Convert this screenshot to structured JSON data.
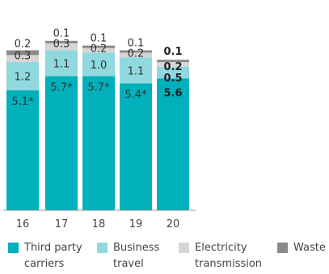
{
  "colors": {
    "third_party_carriers": "#00b0bb",
    "business_travel": "#8fd9df",
    "electricity_transmission": "#d6d6d6",
    "waste": "#8a8a8a"
  },
  "legend": [
    {
      "label": "Third party\ncarriers",
      "color_key": "third_party_carriers"
    },
    {
      "label": "Business\ntravel",
      "color_key": "business_travel"
    },
    {
      "label": "Electricity\ntransmission",
      "color_key": "electricity_transmission"
    },
    {
      "label": "Waste",
      "color_key": "waste"
    }
  ],
  "chart_data": {
    "type": "bar",
    "stacked": true,
    "categories": [
      "16",
      "17",
      "18",
      "19",
      "20"
    ],
    "series": [
      {
        "name": "Third party carriers",
        "color_key": "third_party_carriers",
        "values": [
          5.1,
          5.7,
          5.7,
          5.4,
          5.6
        ],
        "labels": [
          "5.1*",
          "5.7*",
          "5.7*",
          "5.4*",
          "5.6"
        ]
      },
      {
        "name": "Business travel",
        "color_key": "business_travel",
        "values": [
          1.2,
          1.1,
          1.0,
          1.1,
          0.5
        ],
        "labels": [
          "1.2",
          "1.1",
          "1.0",
          "1.1",
          "0.5"
        ]
      },
      {
        "name": "Electricity transmission",
        "color_key": "electricity_transmission",
        "values": [
          0.3,
          0.3,
          0.2,
          0.2,
          0.2
        ],
        "labels": [
          "0.3",
          "0.3",
          "0.2",
          "0.2",
          "0.2"
        ]
      },
      {
        "name": "Waste",
        "color_key": "waste",
        "values": [
          0.2,
          0.1,
          0.1,
          0.1,
          0.1
        ],
        "labels": [
          "0.2",
          "0.1",
          "0.1",
          "0.1",
          "0.1"
        ]
      }
    ],
    "bold_category": "20",
    "title": "",
    "xlabel": "",
    "ylabel": "",
    "grid": false,
    "legend_position": "bottom"
  }
}
